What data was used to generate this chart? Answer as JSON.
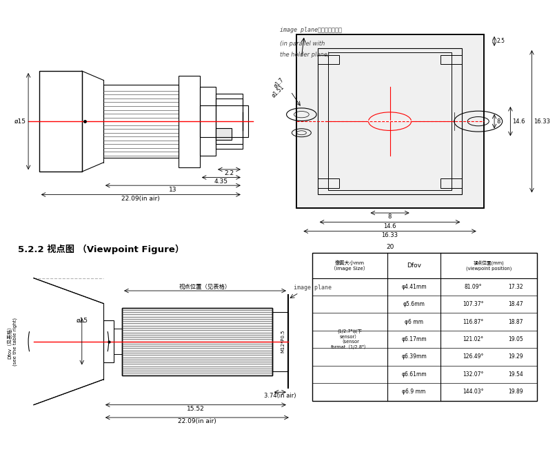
{
  "bg_color": "#ffffff",
  "lc": "#000000",
  "rc": "#ff0000",
  "gc": "#888888",
  "section2_title": "5.2.2 视点图 （Viewpoint Figure）",
  "table_header1": "像面大小mm\n（image Size）",
  "table_header2": "Dfov",
  "table_header3": "视点位置(mm)\n(viewpoint position)",
  "table_col1_label": "(1/2.7\"以下\nsensor）\n（sensor\nformat（1/2.8\"）",
  "table_data": [
    [
      "φ4.41mm",
      "81.09°",
      "17.32"
    ],
    [
      "φ5.6mm",
      "107.37°",
      "18.47"
    ],
    [
      "φ6 mm",
      "116.87°",
      "18.87"
    ],
    [
      "φ6.17mm",
      "121.02°",
      "19.05"
    ],
    [
      "φ6.39mm",
      "126.49°",
      "19.29"
    ],
    [
      "φ6.61mm",
      "132.07°",
      "19.54"
    ],
    [
      "φ6.9 mm",
      "144.03°",
      "19.89"
    ]
  ],
  "top_annot1": "image plane面与底座面平齐",
  "top_annot2": "(in parallel with",
  "top_annot3": "the holder plane)",
  "dim_phi15": "ø15",
  "dim_22": "22.09(in air)",
  "dim_13": "13",
  "dim_435": "4.35",
  "dim_22b": "2.2",
  "dim_phi17": "ø1.7",
  "dim_phi151": "ø1.51",
  "dim_8v": "8",
  "dim_146v": "14.6",
  "dim_1633v": "16.33",
  "dim_20": "20",
  "dim_146h": "14.6",
  "dim_1633h": "16.33",
  "dim_25": "2.5",
  "dim_8h": "8",
  "dim_vp": "视点位置（见表格）",
  "dim_ip": "image plane",
  "dim_m12": "M12*P0.5",
  "dim_dfov": "Dfov（见表格）\n(see the table right)",
  "dim_374": "3.74(in air)",
  "dim_1552": "15.52",
  "dim_2209": "22.09(in air)"
}
